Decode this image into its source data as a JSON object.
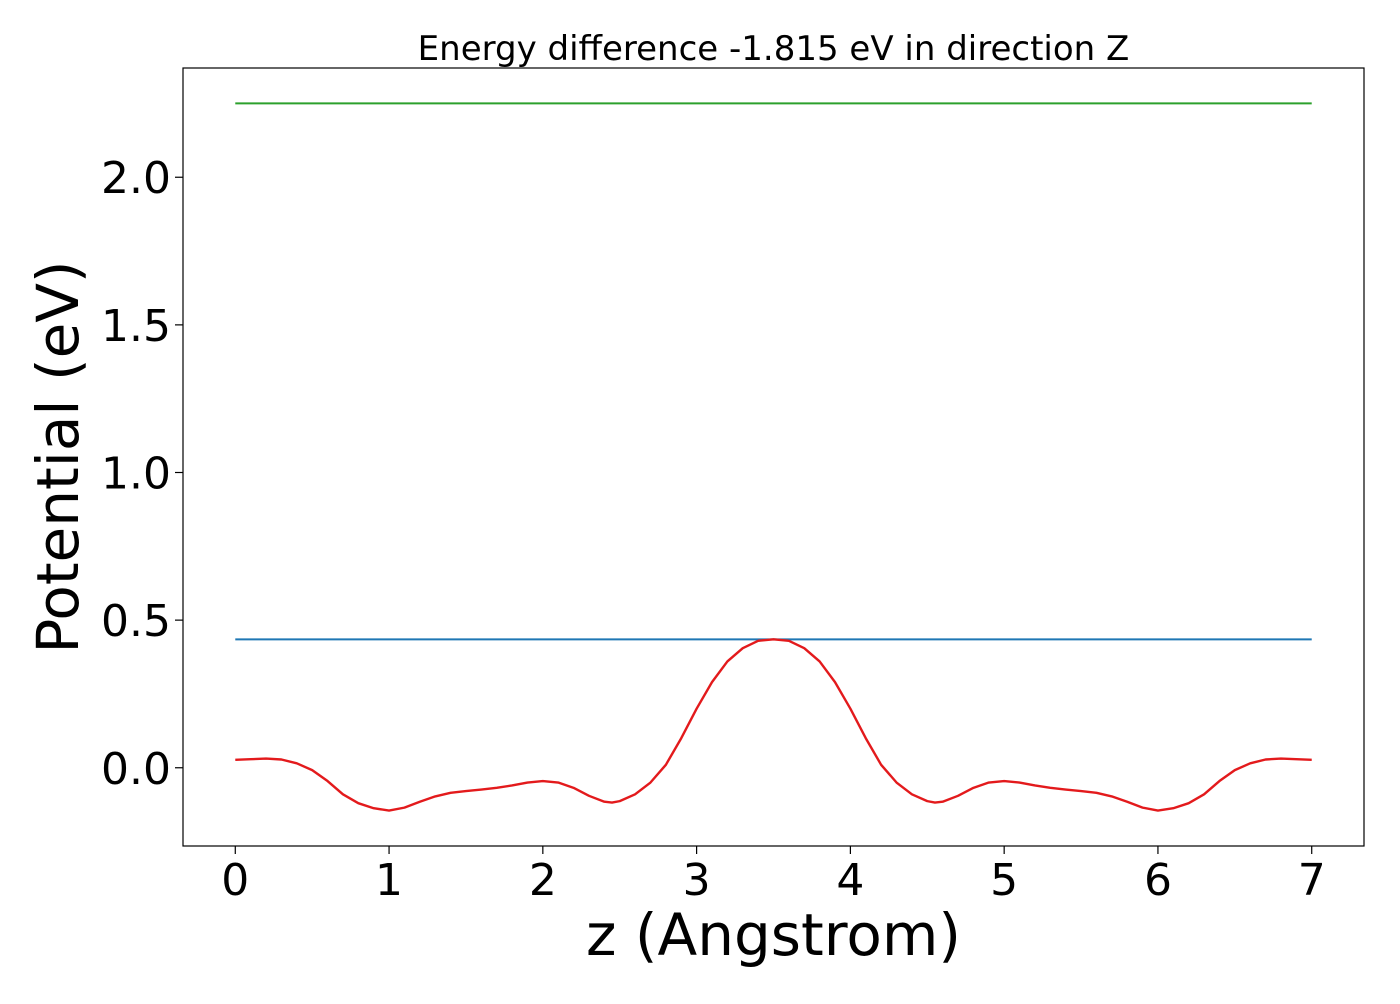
{
  "chart_data": {
    "type": "line",
    "title": "Energy difference -1.815 eV in direction Z",
    "xlabel": "z (Angstrom)",
    "ylabel": "Potential (eV)",
    "xlim": [
      -0.34,
      7.34
    ],
    "ylim": [
      -0.265,
      2.37
    ],
    "x_ticks": [
      0,
      1,
      2,
      3,
      4,
      5,
      6,
      7
    ],
    "x_tick_labels": [
      "0",
      "1",
      "2",
      "3",
      "4",
      "5",
      "6",
      "7"
    ],
    "y_ticks": [
      0.0,
      0.5,
      1.0,
      1.5,
      2.0
    ],
    "y_tick_labels": [
      "0.0",
      "0.5",
      "1.0",
      "1.5",
      "2.0"
    ],
    "grid": false,
    "series": [
      {
        "color": "#2ca02c",
        "kind": "horizontal",
        "x": [
          0,
          7
        ],
        "y": [
          2.25,
          2.25
        ]
      },
      {
        "color": "#1f77b4",
        "kind": "horizontal",
        "x": [
          0,
          7
        ],
        "y": [
          0.435,
          0.435
        ]
      },
      {
        "color": "#e31a1c",
        "kind": "curve",
        "x": [
          0.0,
          0.1,
          0.2,
          0.3,
          0.4,
          0.5,
          0.6,
          0.7,
          0.8,
          0.9,
          1.0,
          1.1,
          1.2,
          1.3,
          1.4,
          1.5,
          1.6,
          1.7,
          1.8,
          1.9,
          2.0,
          2.1,
          2.2,
          2.3,
          2.4,
          2.45,
          2.5,
          2.6,
          2.7,
          2.8,
          2.9,
          3.0,
          3.1,
          3.2,
          3.3,
          3.4,
          3.5,
          3.6,
          3.7,
          3.8,
          3.9,
          4.0,
          4.1,
          4.2,
          4.3,
          4.4,
          4.5,
          4.55,
          4.6,
          4.7,
          4.8,
          4.9,
          5.0,
          5.1,
          5.2,
          5.3,
          5.4,
          5.5,
          5.6,
          5.7,
          5.8,
          5.9,
          6.0,
          6.1,
          6.2,
          6.3,
          6.4,
          6.5,
          6.6,
          6.7,
          6.8,
          6.9,
          7.0
        ],
        "y": [
          0.027,
          0.029,
          0.031,
          0.028,
          0.015,
          -0.008,
          -0.045,
          -0.09,
          -0.12,
          -0.137,
          -0.145,
          -0.135,
          -0.115,
          -0.097,
          -0.085,
          -0.079,
          -0.074,
          -0.068,
          -0.06,
          -0.05,
          -0.045,
          -0.05,
          -0.068,
          -0.095,
          -0.115,
          -0.118,
          -0.113,
          -0.09,
          -0.05,
          0.01,
          0.1,
          0.2,
          0.29,
          0.36,
          0.405,
          0.43,
          0.435,
          0.43,
          0.405,
          0.36,
          0.29,
          0.2,
          0.1,
          0.01,
          -0.05,
          -0.09,
          -0.113,
          -0.118,
          -0.115,
          -0.095,
          -0.068,
          -0.05,
          -0.045,
          -0.05,
          -0.06,
          -0.068,
          -0.074,
          -0.079,
          -0.085,
          -0.097,
          -0.115,
          -0.135,
          -0.145,
          -0.137,
          -0.12,
          -0.09,
          -0.045,
          -0.008,
          0.015,
          0.028,
          0.031,
          0.029,
          0.027
        ]
      }
    ]
  }
}
